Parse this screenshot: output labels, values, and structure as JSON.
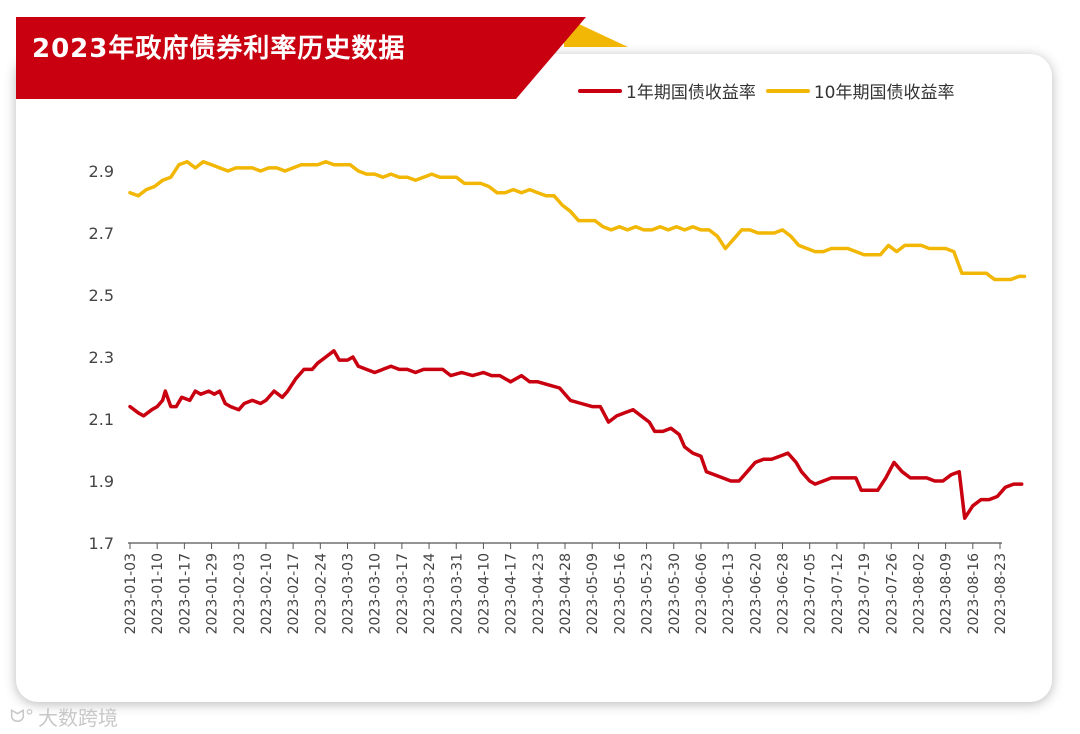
{
  "title": "2023年政府债券利率历史数据",
  "colors": {
    "banner": "#c8000f",
    "banner_accent": "#f2b705",
    "one_year": "#c8000f",
    "ten_year": "#f2b705",
    "axis": "#555555"
  },
  "legend": {
    "one_year": "1年期国债收益率",
    "ten_year": "10年期国债收益率"
  },
  "watermark": "大数跨境",
  "chart_data": {
    "type": "line",
    "title": "2023年政府债券利率历史数据",
    "xlabel": "",
    "ylabel": "",
    "ylim": [
      1.7,
      2.95
    ],
    "yticks": [
      "2.9",
      "2.7",
      "2.5",
      "2.3",
      "2.1",
      "1.9",
      "1.7"
    ],
    "ytick_values": [
      2.9,
      2.7,
      2.5,
      2.3,
      2.1,
      1.9,
      1.7
    ],
    "categories": [
      "2023-01-03",
      "2023-01-10",
      "2023-01-17",
      "2023-01-29",
      "2023-02-03",
      "2023-02-10",
      "2023-02-17",
      "2023-02-24",
      "2023-03-03",
      "2023-03-10",
      "2023-03-17",
      "2023-03-24",
      "2023-03-31",
      "2023-04-10",
      "2023-04-17",
      "2023-04-23",
      "2023-04-28",
      "2023-05-09",
      "2023-05-16",
      "2023-05-23",
      "2023-05-30",
      "2023-06-06",
      "2023-06-13",
      "2023-06-20",
      "2023-06-28",
      "2023-07-05",
      "2023-07-12",
      "2023-07-19",
      "2023-07-26",
      "2023-08-02",
      "2023-08-09",
      "2023-08-16",
      "2023-08-23"
    ],
    "grid": false,
    "legend_position": "top-right",
    "series": [
      {
        "name": "1年期国债收益率",
        "color": "#c8000f",
        "points": [
          [
            0,
            2.14
          ],
          [
            0.3,
            2.12
          ],
          [
            0.5,
            2.11
          ],
          [
            0.8,
            2.13
          ],
          [
            1.0,
            2.14
          ],
          [
            1.2,
            2.16
          ],
          [
            1.3,
            2.19
          ],
          [
            1.5,
            2.14
          ],
          [
            1.7,
            2.14
          ],
          [
            1.9,
            2.17
          ],
          [
            2.2,
            2.16
          ],
          [
            2.4,
            2.19
          ],
          [
            2.6,
            2.18
          ],
          [
            2.9,
            2.19
          ],
          [
            3.1,
            2.18
          ],
          [
            3.3,
            2.19
          ],
          [
            3.5,
            2.15
          ],
          [
            3.7,
            2.14
          ],
          [
            4.0,
            2.13
          ],
          [
            4.2,
            2.15
          ],
          [
            4.5,
            2.16
          ],
          [
            4.8,
            2.15
          ],
          [
            5.0,
            2.16
          ],
          [
            5.3,
            2.19
          ],
          [
            5.6,
            2.17
          ],
          [
            5.8,
            2.19
          ],
          [
            6.1,
            2.23
          ],
          [
            6.4,
            2.26
          ],
          [
            6.7,
            2.26
          ],
          [
            6.9,
            2.28
          ],
          [
            7.2,
            2.3
          ],
          [
            7.5,
            2.32
          ],
          [
            7.7,
            2.29
          ],
          [
            8.0,
            2.29
          ],
          [
            8.2,
            2.3
          ],
          [
            8.4,
            2.27
          ],
          [
            8.7,
            2.26
          ],
          [
            9.0,
            2.25
          ],
          [
            9.3,
            2.26
          ],
          [
            9.6,
            2.27
          ],
          [
            9.9,
            2.26
          ],
          [
            10.2,
            2.26
          ],
          [
            10.5,
            2.25
          ],
          [
            10.8,
            2.26
          ],
          [
            11.1,
            2.26
          ],
          [
            11.5,
            2.26
          ],
          [
            11.8,
            2.24
          ],
          [
            12.2,
            2.25
          ],
          [
            12.6,
            2.24
          ],
          [
            13.0,
            2.25
          ],
          [
            13.3,
            2.24
          ],
          [
            13.6,
            2.24
          ],
          [
            14.0,
            2.22
          ],
          [
            14.4,
            2.24
          ],
          [
            14.7,
            2.22
          ],
          [
            15.0,
            2.22
          ],
          [
            15.4,
            2.21
          ],
          [
            15.8,
            2.2
          ],
          [
            16.2,
            2.16
          ],
          [
            16.6,
            2.15
          ],
          [
            17.0,
            2.14
          ],
          [
            17.3,
            2.14
          ],
          [
            17.6,
            2.09
          ],
          [
            17.9,
            2.11
          ],
          [
            18.2,
            2.12
          ],
          [
            18.5,
            2.13
          ],
          [
            18.8,
            2.11
          ],
          [
            19.1,
            2.09
          ],
          [
            19.3,
            2.06
          ],
          [
            19.6,
            2.06
          ],
          [
            19.9,
            2.07
          ],
          [
            20.2,
            2.05
          ],
          [
            20.4,
            2.01
          ],
          [
            20.7,
            1.99
          ],
          [
            21.0,
            1.98
          ],
          [
            21.2,
            1.93
          ],
          [
            21.5,
            1.92
          ],
          [
            21.8,
            1.91
          ],
          [
            22.1,
            1.9
          ],
          [
            22.4,
            1.9
          ],
          [
            22.7,
            1.93
          ],
          [
            23.0,
            1.96
          ],
          [
            23.3,
            1.97
          ],
          [
            23.6,
            1.97
          ],
          [
            23.9,
            1.98
          ],
          [
            24.2,
            1.99
          ],
          [
            24.5,
            1.96
          ],
          [
            24.7,
            1.93
          ],
          [
            25.0,
            1.9
          ],
          [
            25.2,
            1.89
          ],
          [
            25.5,
            1.9
          ],
          [
            25.8,
            1.91
          ],
          [
            26.1,
            1.91
          ],
          [
            26.4,
            1.91
          ],
          [
            26.7,
            1.91
          ],
          [
            26.9,
            1.87
          ],
          [
            27.2,
            1.87
          ],
          [
            27.5,
            1.87
          ],
          [
            27.8,
            1.91
          ],
          [
            28.1,
            1.96
          ],
          [
            28.4,
            1.93
          ],
          [
            28.7,
            1.91
          ],
          [
            29.0,
            1.91
          ],
          [
            29.3,
            1.91
          ],
          [
            29.6,
            1.9
          ],
          [
            29.9,
            1.9
          ],
          [
            30.2,
            1.92
          ],
          [
            30.5,
            1.93
          ],
          [
            30.7,
            1.78
          ],
          [
            31.0,
            1.82
          ],
          [
            31.3,
            1.84
          ],
          [
            31.6,
            1.84
          ],
          [
            31.9,
            1.85
          ],
          [
            32.2,
            1.88
          ],
          [
            32.5,
            1.89
          ],
          [
            32.8,
            1.89
          ]
        ]
      },
      {
        "name": "10年期国债收益率",
        "color": "#f2b705",
        "points": [
          [
            0,
            2.83
          ],
          [
            0.3,
            2.82
          ],
          [
            0.6,
            2.84
          ],
          [
            0.9,
            2.85
          ],
          [
            1.2,
            2.87
          ],
          [
            1.5,
            2.88
          ],
          [
            1.8,
            2.92
          ],
          [
            2.1,
            2.93
          ],
          [
            2.4,
            2.91
          ],
          [
            2.7,
            2.93
          ],
          [
            3.0,
            2.92
          ],
          [
            3.3,
            2.91
          ],
          [
            3.6,
            2.9
          ],
          [
            3.9,
            2.91
          ],
          [
            4.2,
            2.91
          ],
          [
            4.5,
            2.91
          ],
          [
            4.8,
            2.9
          ],
          [
            5.1,
            2.91
          ],
          [
            5.4,
            2.91
          ],
          [
            5.7,
            2.9
          ],
          [
            6.0,
            2.91
          ],
          [
            6.3,
            2.92
          ],
          [
            6.6,
            2.92
          ],
          [
            6.9,
            2.92
          ],
          [
            7.2,
            2.93
          ],
          [
            7.5,
            2.92
          ],
          [
            7.8,
            2.92
          ],
          [
            8.1,
            2.92
          ],
          [
            8.4,
            2.9
          ],
          [
            8.7,
            2.89
          ],
          [
            9.0,
            2.89
          ],
          [
            9.3,
            2.88
          ],
          [
            9.6,
            2.89
          ],
          [
            9.9,
            2.88
          ],
          [
            10.2,
            2.88
          ],
          [
            10.5,
            2.87
          ],
          [
            10.8,
            2.88
          ],
          [
            11.1,
            2.89
          ],
          [
            11.4,
            2.88
          ],
          [
            11.7,
            2.88
          ],
          [
            12.0,
            2.88
          ],
          [
            12.3,
            2.86
          ],
          [
            12.6,
            2.86
          ],
          [
            12.9,
            2.86
          ],
          [
            13.2,
            2.85
          ],
          [
            13.5,
            2.83
          ],
          [
            13.8,
            2.83
          ],
          [
            14.1,
            2.84
          ],
          [
            14.4,
            2.83
          ],
          [
            14.7,
            2.84
          ],
          [
            15.0,
            2.83
          ],
          [
            15.3,
            2.82
          ],
          [
            15.6,
            2.82
          ],
          [
            15.9,
            2.79
          ],
          [
            16.2,
            2.77
          ],
          [
            16.5,
            2.74
          ],
          [
            16.8,
            2.74
          ],
          [
            17.1,
            2.74
          ],
          [
            17.4,
            2.72
          ],
          [
            17.7,
            2.71
          ],
          [
            18.0,
            2.72
          ],
          [
            18.3,
            2.71
          ],
          [
            18.6,
            2.72
          ],
          [
            18.9,
            2.71
          ],
          [
            19.2,
            2.71
          ],
          [
            19.5,
            2.72
          ],
          [
            19.8,
            2.71
          ],
          [
            20.1,
            2.72
          ],
          [
            20.4,
            2.71
          ],
          [
            20.7,
            2.72
          ],
          [
            21.0,
            2.71
          ],
          [
            21.3,
            2.71
          ],
          [
            21.6,
            2.69
          ],
          [
            21.9,
            2.65
          ],
          [
            22.2,
            2.68
          ],
          [
            22.5,
            2.71
          ],
          [
            22.8,
            2.71
          ],
          [
            23.1,
            2.7
          ],
          [
            23.4,
            2.7
          ],
          [
            23.7,
            2.7
          ],
          [
            24.0,
            2.71
          ],
          [
            24.3,
            2.69
          ],
          [
            24.6,
            2.66
          ],
          [
            24.9,
            2.65
          ],
          [
            25.2,
            2.64
          ],
          [
            25.5,
            2.64
          ],
          [
            25.8,
            2.65
          ],
          [
            26.1,
            2.65
          ],
          [
            26.4,
            2.65
          ],
          [
            26.7,
            2.64
          ],
          [
            27.0,
            2.63
          ],
          [
            27.3,
            2.63
          ],
          [
            27.6,
            2.63
          ],
          [
            27.9,
            2.66
          ],
          [
            28.2,
            2.64
          ],
          [
            28.5,
            2.66
          ],
          [
            28.8,
            2.66
          ],
          [
            29.1,
            2.66
          ],
          [
            29.4,
            2.65
          ],
          [
            29.7,
            2.65
          ],
          [
            30.0,
            2.65
          ],
          [
            30.3,
            2.64
          ],
          [
            30.6,
            2.57
          ],
          [
            30.9,
            2.57
          ],
          [
            31.2,
            2.57
          ],
          [
            31.5,
            2.57
          ],
          [
            31.8,
            2.55
          ],
          [
            32.1,
            2.55
          ],
          [
            32.4,
            2.55
          ],
          [
            32.7,
            2.56
          ],
          [
            32.9,
            2.56
          ]
        ]
      }
    ]
  }
}
